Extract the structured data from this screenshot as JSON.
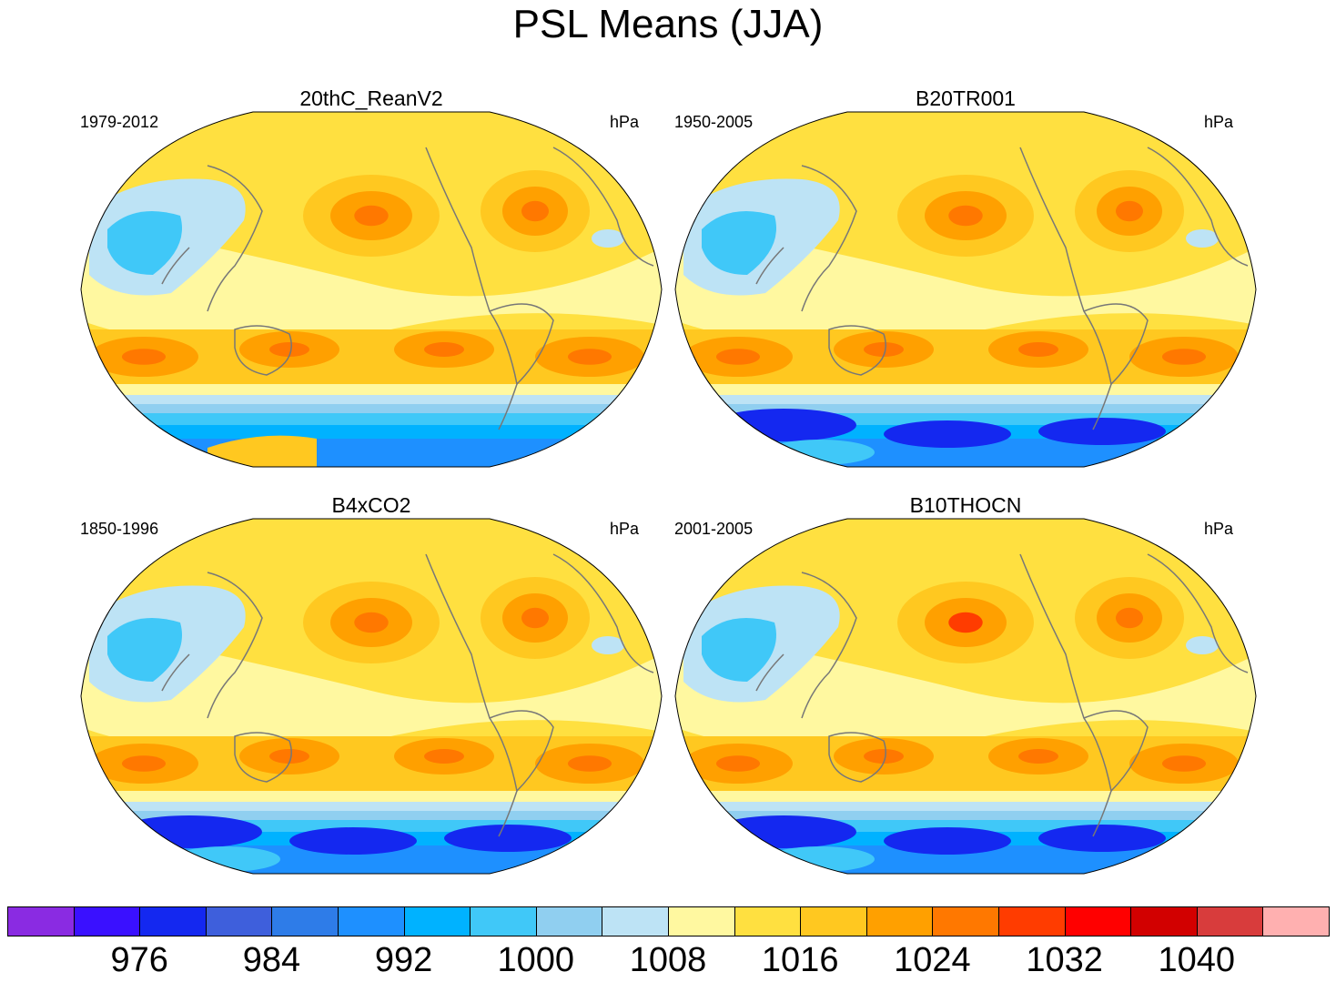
{
  "title": "PSL Means (JJA)",
  "palette": [
    "#8a2be2",
    "#3a10ff",
    "#1428f0",
    "#3e5fdc",
    "#2e7ce8",
    "#1e90ff",
    "#00b2ff",
    "#40c8f8",
    "#90cff0",
    "#bde3f5",
    "#fff8a0",
    "#ffe040",
    "#ffc820",
    "#ffa000",
    "#ff7800",
    "#ff3c00",
    "#ff0000",
    "#d20000",
    "#d83c3c",
    "#ffb0b0"
  ],
  "colorbar": {
    "labels": [
      "976",
      "984",
      "992",
      "1000",
      "1008",
      "1016",
      "1024",
      "1032",
      "1040"
    ],
    "units": "hPa"
  },
  "panels": [
    {
      "title": "20thC_ReanV2",
      "period": "1979-2012",
      "units": "hPa",
      "variant": 0
    },
    {
      "title": "B20TR001",
      "period": "1950-2005",
      "units": "hPa",
      "variant": 1
    },
    {
      "title": "B4xCO2",
      "period": "1850-1996",
      "units": "hPa",
      "variant": 2
    },
    {
      "title": "B10THOCN",
      "period": "2001-2005",
      "units": "hPa",
      "variant": 3
    }
  ]
}
